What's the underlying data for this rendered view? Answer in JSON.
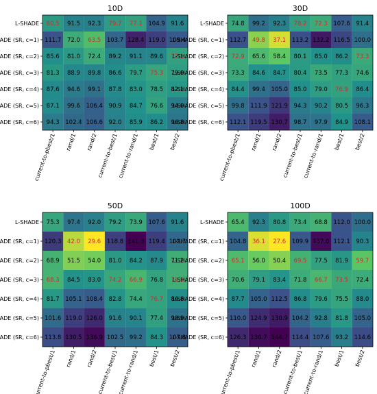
{
  "chart_data": [
    {
      "type": "heatmap",
      "title": "10D",
      "rows": [
        "L-SHADE",
        "L-SHADE (SR, c=1)",
        "L-SHADE (SR, c=2)",
        "L-SHADE (SR, c=3)",
        "L-SHADE (SR, c=4)",
        "L-SHADE (SR, c=5)",
        "L-SHADE (SR, c=6)"
      ],
      "columns": [
        "current-to-pbest/1",
        "rand/1",
        "rand/2",
        "current-to-best/1",
        "current-to-rand/1",
        "best/1",
        "best/2"
      ],
      "values": [
        [
          80.5,
          91.5,
          92.3,
          79.7,
          77.1,
          104.9,
          91.6
        ],
        [
          111.7,
          72.0,
          63.5,
          103.7,
          128.4,
          119.0,
          109.4
        ],
        [
          85.6,
          81.0,
          72.4,
          89.2,
          91.1,
          89.6,
          77.1
        ],
        [
          81.3,
          88.9,
          89.8,
          86.6,
          79.7,
          75.3,
          79.0
        ],
        [
          87.6,
          94.6,
          99.1,
          87.8,
          83.0,
          78.5,
          82.1
        ],
        [
          87.1,
          99.6,
          106.4,
          90.9,
          84.7,
          76.6,
          94.0
        ],
        [
          94.3,
          102.4,
          106.6,
          92.0,
          85.9,
          86.2,
          96.8
        ]
      ],
      "highlight": [
        [
          0,
          0
        ],
        [
          0,
          3
        ],
        [
          0,
          4
        ],
        [
          1,
          2
        ],
        [
          2,
          6
        ],
        [
          3,
          5
        ]
      ]
    },
    {
      "type": "heatmap",
      "title": "30D",
      "rows": [
        "L-SHADE",
        "L-SHADE (SR, c=1)",
        "L-SHADE (SR, c=2)",
        "L-SHADE (SR, c=3)",
        "L-SHADE (SR, c=4)",
        "L-SHADE (SR, c=5)",
        "L-SHADE (SR, c=6)"
      ],
      "columns": [
        "current-to-pbest/1",
        "rand/1",
        "rand/2",
        "current-to-best/1",
        "current-to-rand/1",
        "best/1",
        "best/2"
      ],
      "values": [
        [
          74.8,
          99.2,
          92.3,
          78.2,
          72.3,
          107.6,
          91.4
        ],
        [
          112.7,
          49.8,
          37.1,
          113.2,
          132.2,
          116.5,
          100.0
        ],
        [
          72.9,
          65.6,
          58.4,
          80.1,
          85.0,
          86.2,
          73.3
        ],
        [
          73.3,
          84.6,
          84.7,
          80.4,
          73.5,
          77.3,
          74.6
        ],
        [
          84.4,
          99.4,
          105.0,
          85.0,
          79.0,
          76.9,
          86.4
        ],
        [
          99.8,
          111.9,
          121.9,
          94.3,
          90.2,
          80.5,
          96.3
        ],
        [
          112.1,
          119.5,
          130.7,
          98.7,
          97.9,
          84.9,
          108.1
        ]
      ],
      "highlight": [
        [
          0,
          3
        ],
        [
          0,
          4
        ],
        [
          1,
          1
        ],
        [
          1,
          2
        ],
        [
          2,
          0
        ],
        [
          2,
          6
        ],
        [
          4,
          5
        ]
      ]
    },
    {
      "type": "heatmap",
      "title": "50D",
      "rows": [
        "L-SHADE",
        "L-SHADE (SR, c=1)",
        "L-SHADE (SR, c=2)",
        "L-SHADE (SR, c=3)",
        "L-SHADE (SR, c=4)",
        "L-SHADE (SR, c=5)",
        "L-SHADE (SR, c=6)"
      ],
      "columns": [
        "current-to-pbest/1",
        "rand/1",
        "rand/2",
        "current-to-best/1",
        "current-to-rand/1",
        "best/1",
        "best/2"
      ],
      "values": [
        [
          75.3,
          97.4,
          92.0,
          79.2,
          73.9,
          107.6,
          91.6
        ],
        [
          120.3,
          42.0,
          29.6,
          118.8,
          141.3,
          119.4,
          102.7
        ],
        [
          68.9,
          51.5,
          54.0,
          81.0,
          84.2,
          87.9,
          71.2
        ],
        [
          68.3,
          84.5,
          83.0,
          74.2,
          66.9,
          76.8,
          70.9
        ],
        [
          81.7,
          105.1,
          108.4,
          82.8,
          74.4,
          76.7,
          86.8
        ],
        [
          101.6,
          119.0,
          126.0,
          91.6,
          90.1,
          77.4,
          98.9
        ],
        [
          113.8,
          130.5,
          136.9,
          102.5,
          99.2,
          84.3,
          107.8
        ]
      ],
      "highlight": [
        [
          1,
          1
        ],
        [
          1,
          2
        ],
        [
          3,
          0
        ],
        [
          3,
          3
        ],
        [
          3,
          4
        ],
        [
          3,
          6
        ],
        [
          4,
          5
        ]
      ]
    },
    {
      "type": "heatmap",
      "title": "100D",
      "rows": [
        "L-SHADE",
        "L-SHADE (SR, c=1)",
        "L-SHADE (SR, c=2)",
        "L-SHADE (SR, c=3)",
        "L-SHADE (SR, c=4)",
        "L-SHADE (SR, c=5)",
        "L-SHADE (SR, c=6)"
      ],
      "columns": [
        "current-to-pbest/1",
        "rand/1",
        "rand/2",
        "current-to-best/1",
        "current-to-rand/1",
        "best/1",
        "best/2"
      ],
      "values": [
        [
          65.4,
          92.3,
          80.8,
          73.4,
          68.8,
          112.0,
          100.0
        ],
        [
          104.8,
          36.1,
          27.6,
          109.9,
          137.0,
          112.1,
          90.3
        ],
        [
          65.1,
          56.0,
          50.4,
          69.5,
          77.5,
          81.9,
          59.7
        ],
        [
          70.6,
          79.1,
          83.4,
          71.8,
          66.7,
          73.5,
          72.4
        ],
        [
          87.7,
          105.0,
          112.5,
          86.8,
          79.6,
          75.5,
          88.0
        ],
        [
          110.0,
          124.9,
          130.9,
          104.2,
          92.8,
          81.8,
          105.0
        ],
        [
          126.3,
          136.7,
          144.7,
          114.4,
          107.6,
          93.2,
          114.6
        ]
      ],
      "highlight": [
        [
          1,
          1
        ],
        [
          1,
          2
        ],
        [
          2,
          0
        ],
        [
          2,
          3
        ],
        [
          2,
          6
        ],
        [
          3,
          4
        ],
        [
          3,
          5
        ]
      ]
    }
  ],
  "colors": {
    "highlight_text": "#d62728",
    "normal_text": "#000000"
  }
}
